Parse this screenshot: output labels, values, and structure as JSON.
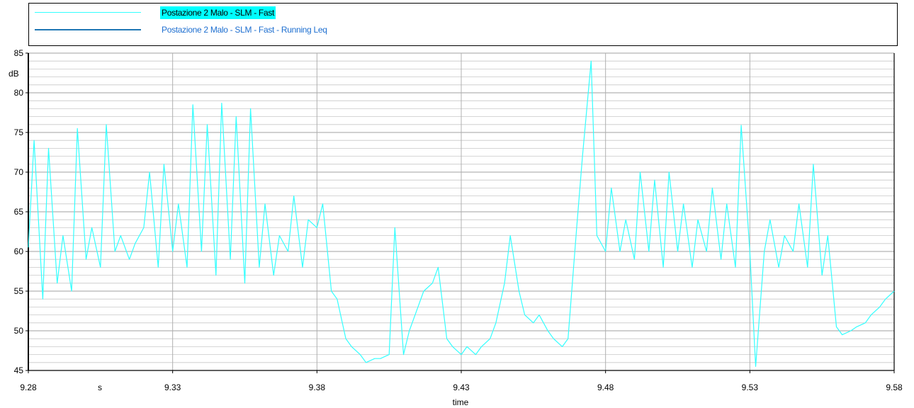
{
  "legend": {
    "items": [
      {
        "label": "Postazione 2 Malo - SLM - Fast",
        "color": "#33ffff",
        "highlighted": true
      },
      {
        "label": "Postazione 2 Malo - SLM - Fast - Running Leq",
        "color": "#1f77b4",
        "highlighted": false
      }
    ]
  },
  "chart_data": {
    "type": "line",
    "title": "",
    "xlabel": "time",
    "x_unit": "s",
    "ylabel": "dB",
    "xlim": [
      9.28,
      9.58
    ],
    "ylim": [
      45,
      85
    ],
    "x_ticks": [
      "9.28",
      "9.33",
      "9.38",
      "9.43",
      "9.48",
      "9.53",
      "9.58"
    ],
    "y_ticks": [
      "45",
      "50",
      "55",
      "60",
      "65",
      "70",
      "75",
      "80",
      "85"
    ],
    "grid": true,
    "legend_position": "top",
    "series": [
      {
        "name": "Postazione 2 Malo - SLM - Fast",
        "color": "#33ffff",
        "x": [
          9.28,
          9.282,
          9.285,
          9.287,
          9.29,
          9.292,
          9.295,
          9.297,
          9.3,
          9.302,
          9.305,
          9.307,
          9.31,
          9.312,
          9.315,
          9.317,
          9.32,
          9.322,
          9.325,
          9.327,
          9.33,
          9.332,
          9.335,
          9.337,
          9.34,
          9.342,
          9.345,
          9.347,
          9.35,
          9.352,
          9.355,
          9.357,
          9.36,
          9.362,
          9.365,
          9.367,
          9.37,
          9.372,
          9.375,
          9.377,
          9.38,
          9.382,
          9.385,
          9.387,
          9.39,
          9.392,
          9.395,
          9.397,
          9.4,
          9.402,
          9.405,
          9.407,
          9.41,
          9.412,
          9.415,
          9.417,
          9.42,
          9.422,
          9.425,
          9.427,
          9.43,
          9.432,
          9.435,
          9.437,
          9.44,
          9.442,
          9.445,
          9.447,
          9.45,
          9.452,
          9.455,
          9.457,
          9.46,
          9.462,
          9.465,
          9.467,
          9.47,
          9.472,
          9.475,
          9.477,
          9.48,
          9.482,
          9.485,
          9.487,
          9.49,
          9.492,
          9.495,
          9.497,
          9.5,
          9.502,
          9.505,
          9.507,
          9.51,
          9.512,
          9.515,
          9.517,
          9.52,
          9.522,
          9.525,
          9.527,
          9.53,
          9.532,
          9.535,
          9.537,
          9.54,
          9.542,
          9.545,
          9.547,
          9.55,
          9.552,
          9.555,
          9.557,
          9.56,
          9.562,
          9.565,
          9.567,
          9.57,
          9.572,
          9.575,
          9.577,
          9.58
        ],
        "values": [
          60.5,
          74,
          54,
          73,
          56,
          62,
          55,
          75.5,
          59,
          63,
          58,
          76,
          60,
          62,
          59,
          61,
          63,
          70,
          58,
          71,
          60,
          66,
          58,
          78.5,
          60,
          76,
          57,
          78.7,
          59,
          77,
          56,
          78,
          58,
          66,
          57,
          62,
          60,
          67,
          58,
          64,
          63,
          66,
          55,
          54,
          49,
          48,
          47,
          46,
          46.5,
          46.5,
          47,
          63,
          47,
          50,
          53,
          55,
          56,
          58,
          49,
          48,
          47,
          48,
          47,
          48,
          49,
          51,
          56,
          62,
          55,
          52,
          51,
          52,
          50,
          49,
          48,
          49,
          63,
          72,
          84,
          62,
          60,
          68,
          60,
          64,
          59,
          70,
          60,
          69,
          58,
          70,
          60,
          66,
          58,
          64,
          60,
          68,
          59,
          66,
          58,
          75.9,
          60,
          45.5,
          60,
          64,
          58,
          62,
          60,
          66,
          58,
          71,
          57,
          62,
          50.5,
          49.5,
          50,
          50.5,
          51,
          52,
          53,
          54,
          55
        ]
      },
      {
        "name": "Postazione 2 Malo - SLM - Fast - Running Leq",
        "color": "#1f77b4",
        "x": [],
        "values": []
      }
    ]
  }
}
